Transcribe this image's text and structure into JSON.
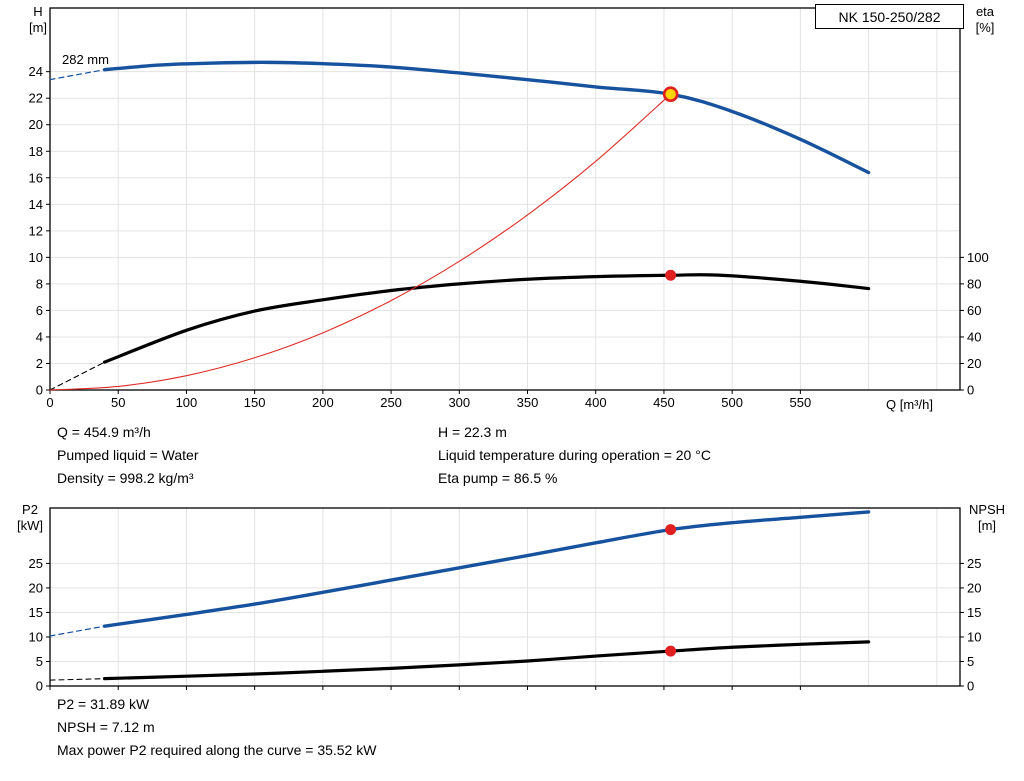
{
  "chart_data": [
    {
      "type": "line",
      "title": "NK 150-250/282",
      "annotation": "282 mm",
      "xlabel": "Q [m³/h]",
      "ylabel_left": [
        "H",
        "[m]"
      ],
      "ylabel_right": [
        "eta",
        "[%]"
      ],
      "xlim": [
        0,
        667
      ],
      "ylim_left": [
        0,
        28.8
      ],
      "ylim_right": [
        0,
        288
      ],
      "x_ticks": [
        0,
        50,
        100,
        150,
        200,
        250,
        300,
        350,
        400,
        450,
        500,
        550
      ],
      "y_ticks_left": [
        0,
        2,
        4,
        6,
        8,
        10,
        12,
        14,
        16,
        18,
        20,
        22,
        24
      ],
      "y_ticks_right": [
        0,
        20,
        40,
        60,
        80,
        100
      ],
      "grid": true,
      "legend": "none",
      "series": [
        {
          "name": "head-curve-dashed",
          "axis": "left",
          "color": "#17529e",
          "width": 1.2,
          "dash": "5 4",
          "points": [
            [
              0,
              23.4
            ],
            [
              40,
              24.15
            ]
          ]
        },
        {
          "name": "head-curve",
          "axis": "left",
          "color": "#17529e",
          "width": 3.4,
          "points": [
            [
              40,
              24.15
            ],
            [
              80,
              24.5
            ],
            [
              120,
              24.65
            ],
            [
              160,
              24.7
            ],
            [
              200,
              24.6
            ],
            [
              250,
              24.35
            ],
            [
              300,
              23.9
            ],
            [
              350,
              23.4
            ],
            [
              400,
              22.85
            ],
            [
              454.9,
              22.3
            ],
            [
              500,
              21.0
            ],
            [
              550,
              18.9
            ],
            [
              600,
              16.4
            ]
          ]
        },
        {
          "name": "eta-curve-dashed",
          "axis": "right",
          "color": "#000000",
          "width": 1.1,
          "dash": "5 4",
          "points": [
            [
              0,
              0
            ],
            [
              40,
              21
            ]
          ]
        },
        {
          "name": "eta-curve",
          "axis": "right",
          "color": "#000000",
          "width": 3.2,
          "points": [
            [
              40,
              21
            ],
            [
              100,
              45
            ],
            [
              150,
              59.5
            ],
            [
              200,
              68
            ],
            [
              250,
              75
            ],
            [
              300,
              80
            ],
            [
              350,
              83.5
            ],
            [
              400,
              85.5
            ],
            [
              454.9,
              86.5
            ],
            [
              490,
              86.6
            ],
            [
              550,
              82
            ],
            [
              600,
              76.5
            ]
          ]
        },
        {
          "name": "system-curve",
          "axis": "left",
          "color": "#dd2c26",
          "width": 1.1,
          "points": [
            [
              0,
              0
            ],
            [
              50,
              0.27
            ],
            [
              100,
              1.08
            ],
            [
              150,
              2.43
            ],
            [
              200,
              4.31
            ],
            [
              250,
              6.74
            ],
            [
              300,
              9.7
            ],
            [
              350,
              13.2
            ],
            [
              400,
              17.24
            ],
            [
              454.9,
              22.3
            ]
          ]
        }
      ],
      "markers": [
        {
          "name": "duty-point-marker",
          "axis": "left",
          "x": 454.9,
          "y": 22.3,
          "r": 6.5,
          "fill": "#ffd400",
          "stroke": "#e02020",
          "stroke_width": 2.6
        },
        {
          "name": "eta-point-marker",
          "axis": "right",
          "x": 454.9,
          "y": 86.5,
          "r": 5.5,
          "fill": "#e02020",
          "stroke": "#e02020",
          "stroke_width": 0
        }
      ]
    },
    {
      "type": "line",
      "title": "",
      "xlabel": "",
      "ylabel_left": [
        "P2",
        "[kW]"
      ],
      "ylabel_right": [
        "NPSH",
        "[m]"
      ],
      "xlim": [
        0,
        667
      ],
      "ylim_left": [
        0,
        36.3
      ],
      "ylim_right": [
        0,
        36.3
      ],
      "x_ticks": [
        0,
        50,
        100,
        150,
        200,
        250,
        300,
        350,
        400,
        450,
        500,
        550
      ],
      "y_ticks_left": [
        0,
        5,
        10,
        15,
        20,
        25
      ],
      "y_ticks_right": [
        0,
        5,
        10,
        15,
        20,
        25
      ],
      "grid": true,
      "legend": "none",
      "series": [
        {
          "name": "p2-curve-dashed",
          "axis": "left",
          "color": "#17529e",
          "width": 1.2,
          "dash": "5 4",
          "points": [
            [
              0,
              10.2
            ],
            [
              40,
              12.2
            ]
          ]
        },
        {
          "name": "p2-curve",
          "axis": "left",
          "color": "#17529e",
          "width": 3.4,
          "points": [
            [
              40,
              12.2
            ],
            [
              100,
              14.6
            ],
            [
              150,
              16.7
            ],
            [
              200,
              19.1
            ],
            [
              250,
              21.6
            ],
            [
              300,
              24.1
            ],
            [
              350,
              26.6
            ],
            [
              400,
              29.2
            ],
            [
              454.9,
              31.89
            ],
            [
              500,
              33.3
            ],
            [
              550,
              34.4
            ],
            [
              600,
              35.5
            ]
          ]
        },
        {
          "name": "npsh-curve-dashed",
          "axis": "left",
          "color": "#000000",
          "width": 1.1,
          "dash": "5 4",
          "points": [
            [
              0,
              1.2
            ],
            [
              40,
              1.5
            ]
          ]
        },
        {
          "name": "npsh-curve",
          "axis": "left",
          "color": "#000000",
          "width": 3.2,
          "points": [
            [
              40,
              1.5
            ],
            [
              100,
              2.0
            ],
            [
              150,
              2.45
            ],
            [
              200,
              3.0
            ],
            [
              250,
              3.6
            ],
            [
              300,
              4.3
            ],
            [
              350,
              5.1
            ],
            [
              400,
              6.1
            ],
            [
              454.9,
              7.12
            ],
            [
              500,
              7.9
            ],
            [
              550,
              8.5
            ],
            [
              600,
              9.0
            ]
          ]
        }
      ],
      "markers": [
        {
          "name": "p2-point-marker",
          "axis": "left",
          "x": 454.9,
          "y": 31.89,
          "r": 5.5,
          "fill": "#e02020",
          "stroke": "#e02020",
          "stroke_width": 0
        },
        {
          "name": "npsh-point-marker",
          "axis": "left",
          "x": 454.9,
          "y": 7.12,
          "r": 5.5,
          "fill": "#e02020",
          "stroke": "#e02020",
          "stroke_width": 0
        }
      ]
    }
  ],
  "info_top": {
    "col1": [
      "Q = 454.9 m³/h",
      "Pumped liquid = Water",
      "Density = 998.2 kg/m³"
    ],
    "col2": [
      "H = 22.3 m",
      "Liquid temperature during operation = 20 °C",
      "Eta pump = 86.5 %"
    ]
  },
  "info_bottom": [
    "P2 = 31.89 kW",
    "NPSH = 7.12 m",
    "Max power P2 required along the curve = 35.52 kW"
  ],
  "colors": {
    "curve_blue": "#17529e",
    "curve_red": "#dd2c26",
    "marker_yellow": "#ffd400",
    "marker_red": "#e02020",
    "grid": "#e3e3e3",
    "axis": "#000000"
  }
}
